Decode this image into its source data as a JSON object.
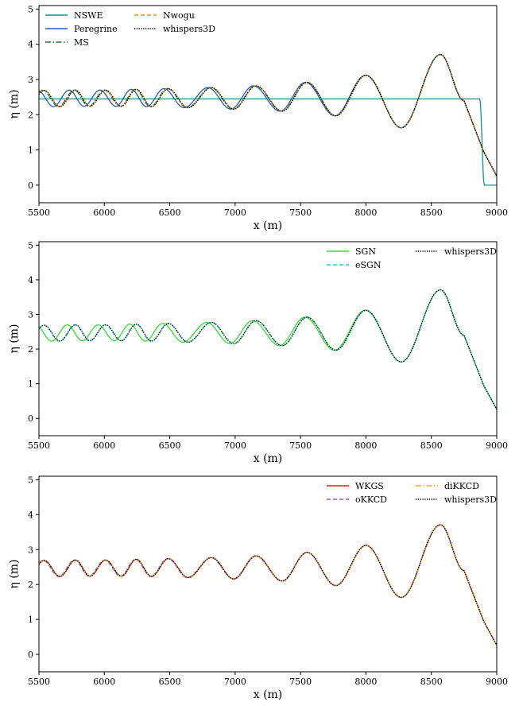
{
  "chart_data": [
    {
      "type": "line",
      "xlabel": "x (m)",
      "ylabel": "η (m)",
      "xlim": [
        5500,
        9000
      ],
      "ylim": [
        -0.5,
        5.1
      ],
      "xticks": [
        "5500",
        "6000",
        "6500",
        "7000",
        "7500",
        "8000",
        "8500",
        "9000"
      ],
      "yticks": [
        "0",
        "1",
        "2",
        "3",
        "4",
        "5"
      ],
      "legend_position": "top-left",
      "legend_columns": 2,
      "series": [
        {
          "name": "NSWE",
          "color": "#17908f",
          "dash": "solid",
          "model": "nswe"
        },
        {
          "name": "Peregrine",
          "color": "#1f5fbf",
          "dash": "solid",
          "model": "dispersive",
          "phase_shift": 0.7
        },
        {
          "name": "MS",
          "color": "#2a6e2a",
          "dash": "dashdot",
          "model": "dispersive",
          "phase_shift": 0.15
        },
        {
          "name": "Nwogu",
          "color": "#ff8c1a",
          "dash": "dashed",
          "model": "dispersive",
          "phase_shift": 0.05
        },
        {
          "name": "whispers3D",
          "color": "#000000",
          "dash": "dotted",
          "model": "dispersive",
          "phase_shift": 0.0
        }
      ]
    },
    {
      "type": "line",
      "xlabel": "x (m)",
      "ylabel": "η (m)",
      "xlim": [
        5500,
        9000
      ],
      "ylim": [
        -0.5,
        5.1
      ],
      "xticks": [
        "5500",
        "6000",
        "6500",
        "7000",
        "7500",
        "8000",
        "8500",
        "9000"
      ],
      "yticks": [
        "0",
        "1",
        "2",
        "3",
        "4",
        "5"
      ],
      "legend_position": "top-right",
      "legend_columns": 2,
      "series": [
        {
          "name": "SGN",
          "color": "#33dd33",
          "dash": "solid",
          "model": "dispersive",
          "phase_shift": 0.9
        },
        {
          "name": "eSGN",
          "color": "#22c8d8",
          "dash": "dashed",
          "model": "dispersive",
          "phase_shift": 0.05
        },
        {
          "name": "whispers3D",
          "color": "#000000",
          "dash": "dotted",
          "model": "dispersive",
          "phase_shift": 0.0
        }
      ]
    },
    {
      "type": "line",
      "xlabel": "x (m)",
      "ylabel": "η (m)",
      "xlim": [
        5500,
        9000
      ],
      "ylim": [
        -0.5,
        5.1
      ],
      "xticks": [
        "5500",
        "6000",
        "6500",
        "7000",
        "7500",
        "8000",
        "8500",
        "9000"
      ],
      "yticks": [
        "0",
        "1",
        "2",
        "3",
        "4",
        "5"
      ],
      "legend_position": "top-right",
      "legend_columns": 2,
      "series": [
        {
          "name": "WKGS",
          "color": "#dd1a1a",
          "dash": "solid",
          "model": "dispersive",
          "phase_shift": 0.0
        },
        {
          "name": "oKKCD",
          "color": "#9a4ddd",
          "dash": "dashed",
          "model": "dispersive",
          "phase_shift": 0.12
        },
        {
          "name": "diKKCD",
          "color": "#f0b400",
          "dash": "dashdot",
          "model": "dispersive",
          "phase_shift": 0.03
        },
        {
          "name": "whispers3D",
          "color": "#000000",
          "dash": "dotted",
          "model": "dispersive",
          "phase_shift": 0.0
        }
      ]
    }
  ],
  "wave_profile": {
    "mean_level": 2.45,
    "nswe_plateau": 2.45,
    "nswe_front_x": 8890,
    "crests": [
      [
        5540,
        2.69
      ],
      [
        5780,
        2.7
      ],
      [
        6010,
        2.7
      ],
      [
        6245,
        2.72
      ],
      [
        6490,
        2.74
      ],
      [
        6820,
        2.77
      ],
      [
        7160,
        2.82
      ],
      [
        7550,
        2.92
      ],
      [
        8000,
        3.12
      ],
      [
        8570,
        3.71
      ]
    ],
    "troughs": [
      [
        5660,
        2.23
      ],
      [
        5890,
        2.24
      ],
      [
        6130,
        2.24
      ],
      [
        6360,
        2.23
      ],
      [
        6640,
        2.2
      ],
      [
        6990,
        2.16
      ],
      [
        7360,
        2.1
      ],
      [
        7770,
        1.97
      ],
      [
        8270,
        1.63
      ]
    ],
    "tail": [
      [
        8750,
        2.4
      ],
      [
        8900,
        0.95
      ],
      [
        9000,
        0.26
      ]
    ]
  }
}
